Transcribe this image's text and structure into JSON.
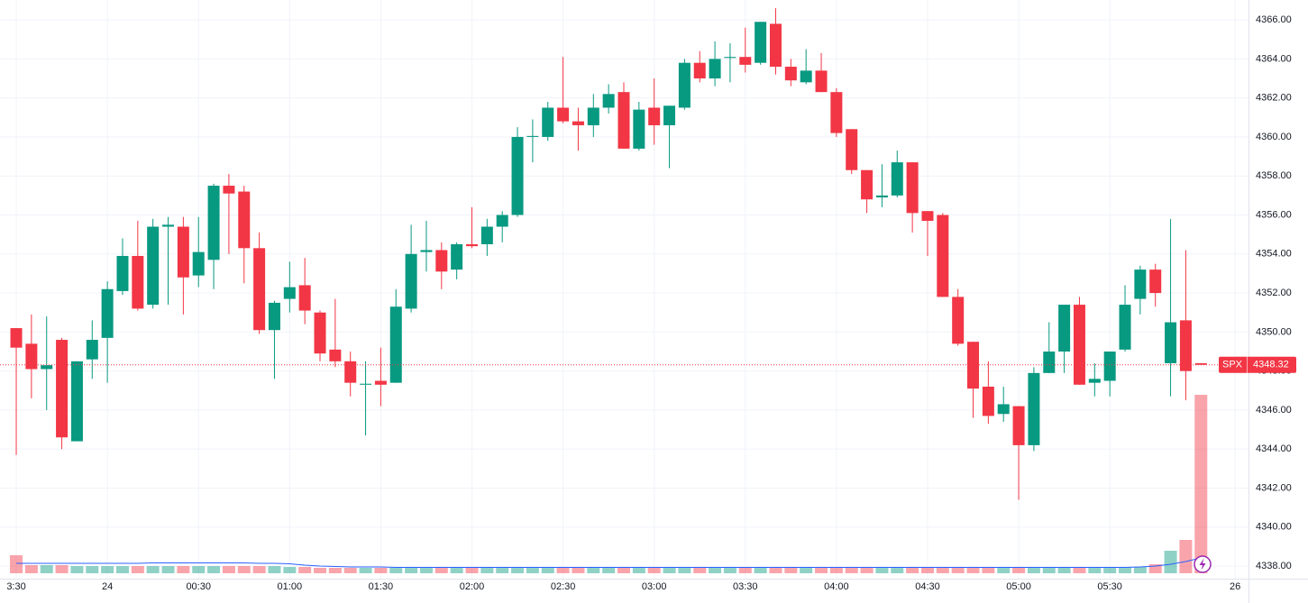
{
  "chart_data": {
    "type": "candlestick",
    "symbol": "SPX",
    "last_price": 4348.32,
    "up_color": "#089981",
    "down_color": "#f23645",
    "ma_color": "#2962ff",
    "grid": true,
    "xlim": [
      -1.07,
      81.13
    ],
    "xticks": [
      {
        "value": 0,
        "label": "3:30"
      },
      {
        "value": 6,
        "label": "24"
      },
      {
        "value": 12,
        "label": "00:30"
      },
      {
        "value": 18,
        "label": "01:00"
      },
      {
        "value": 24,
        "label": "01:30"
      },
      {
        "value": 30,
        "label": "02:00"
      },
      {
        "value": 36,
        "label": "02:30"
      },
      {
        "value": 42,
        "label": "03:00"
      },
      {
        "value": 48,
        "label": "03:30"
      },
      {
        "value": 54,
        "label": "04:00"
      },
      {
        "value": 60,
        "label": "04:30"
      },
      {
        "value": 66,
        "label": "05:00"
      },
      {
        "value": 72,
        "label": "05:30"
      },
      {
        "value": 80.25,
        "label": "26"
      }
    ],
    "ylim": [
      4337.45,
      4367.02
    ],
    "yticks": [
      {
        "value": 4338,
        "label": "4338.00"
      },
      {
        "value": 4340,
        "label": "4340.00"
      },
      {
        "value": 4342,
        "label": "4342.00"
      },
      {
        "value": 4344,
        "label": "4344.00"
      },
      {
        "value": 4346,
        "label": "4346.00"
      },
      {
        "value": 4348,
        "label": "4348.00"
      },
      {
        "value": 4350,
        "label": "4350.00"
      },
      {
        "value": 4352,
        "label": "4352.00"
      },
      {
        "value": 4354,
        "label": "4354.00"
      },
      {
        "value": 4356,
        "label": "4356.00"
      },
      {
        "value": 4358,
        "label": "4358.00"
      },
      {
        "value": 4360,
        "label": "4360.00"
      },
      {
        "value": 4362,
        "label": "4362.00"
      },
      {
        "value": 4364,
        "label": "4364.00"
      },
      {
        "value": 4366,
        "label": "4366.00"
      }
    ],
    "open": [
      4350.2,
      4349.4,
      4348.1,
      4349.6,
      4344.4,
      4348.6,
      4349.7,
      4352.1,
      4353.9,
      4351.4,
      4355.4,
      4355.4,
      4352.9,
      4353.7,
      4357.5,
      4357.2,
      4354.3,
      4350.1,
      4351.7,
      4352.4,
      4351.0,
      4349.1,
      4348.5,
      4347.3,
      4347.5,
      4347.4,
      4351.2,
      4354.1,
      4354.2,
      4353.2,
      4354.5,
      4354.5,
      4355.4,
      4356.0,
      4360.0,
      4360.0,
      4361.5,
      4360.8,
      4360.6,
      4361.5,
      4362.3,
      4359.4,
      4361.5,
      4360.6,
      4361.5,
      4363.8,
      4363.0,
      4364.05,
      4364.1,
      4363.8,
      4365.8,
      4363.6,
      4362.8,
      4363.4,
      4362.3,
      4360.4,
      4358.3,
      4356.9,
      4357.0,
      4358.7,
      4356.2,
      4356.0,
      4351.8,
      4349.5,
      4347.2,
      4345.8,
      4346.2,
      4344.2,
      4347.9,
      4349.0,
      4351.4,
      4347.4,
      4347.5,
      4349.1,
      4351.7,
      4353.2,
      4348.4,
      4350.6,
      4348.4
    ],
    "high": [
      4350.2,
      4350.9,
      4350.8,
      4349.7,
      4348.5,
      4350.6,
      4352.6,
      4354.8,
      4355.7,
      4355.8,
      4355.9,
      4355.9,
      4355.9,
      4357.6,
      4358.1,
      4357.5,
      4355.1,
      4351.6,
      4353.6,
      4353.8,
      4351.1,
      4351.7,
      4349.0,
      4348.5,
      4349.2,
      4352.2,
      4355.5,
      4355.7,
      4354.6,
      4354.6,
      4356.4,
      4355.8,
      4356.2,
      4360.5,
      4360.9,
      4361.8,
      4364.1,
      4361.5,
      4362.2,
      4362.7,
      4362.8,
      4361.8,
      4363.0,
      4361.6,
      4364.0,
      4364.4,
      4364.9,
      4364.8,
      4365.6,
      4365.9,
      4366.6,
      4364.0,
      4364.5,
      4364.3,
      4362.5,
      4360.4,
      4358.3,
      4358.6,
      4359.3,
      4358.7,
      4356.2,
      4356.1,
      4352.2,
      4349.5,
      4348.5,
      4347.2,
      4346.2,
      4348.2,
      4350.5,
      4351.4,
      4351.8,
      4348.4,
      4349.0,
      4352.4,
      4353.4,
      4353.5,
      4355.8,
      4354.2,
      4348.4
    ],
    "low": [
      4343.7,
      4346.6,
      4346.0,
      4344.0,
      4344.4,
      4347.6,
      4347.4,
      4351.9,
      4351.1,
      4351.2,
      4351.4,
      4350.9,
      4352.3,
      4352.2,
      4354.0,
      4352.5,
      4349.9,
      4347.6,
      4351.0,
      4350.4,
      4348.5,
      4348.2,
      4346.7,
      4344.7,
      4346.2,
      4347.4,
      4351.0,
      4353.1,
      4352.2,
      4352.7,
      4354.3,
      4353.9,
      4354.6,
      4355.9,
      4358.7,
      4359.8,
      4360.7,
      4359.3,
      4360.0,
      4361.2,
      4359.4,
      4359.3,
      4359.6,
      4358.4,
      4361.4,
      4362.8,
      4362.6,
      4362.8,
      4363.3,
      4363.7,
      4363.2,
      4362.6,
      4362.7,
      4362.3,
      4360.0,
      4358.1,
      4356.1,
      4356.4,
      4356.9,
      4355.1,
      4353.9,
      4351.8,
      4349.3,
      4345.6,
      4345.3,
      4345.4,
      4341.4,
      4343.9,
      4347.9,
      4347.9,
      4347.3,
      4346.7,
      4346.7,
      4349.0,
      4350.9,
      4351.3,
      4346.7,
      4346.5,
      4348.32
    ],
    "close": [
      4349.2,
      4348.1,
      4348.3,
      4344.6,
      4348.5,
      4349.6,
      4352.2,
      4353.9,
      4351.2,
      4355.4,
      4355.5,
      4352.8,
      4354.1,
      4357.5,
      4357.1,
      4354.3,
      4350.1,
      4351.5,
      4352.3,
      4351.1,
      4348.9,
      4348.5,
      4347.4,
      4347.35,
      4347.3,
      4351.3,
      4354.0,
      4354.2,
      4353.1,
      4354.5,
      4354.4,
      4355.4,
      4356.0,
      4360.0,
      4360.05,
      4361.5,
      4360.8,
      4360.6,
      4361.5,
      4362.2,
      4359.4,
      4361.4,
      4360.6,
      4361.6,
      4363.8,
      4363.0,
      4364.0,
      4364.1,
      4363.7,
      4365.9,
      4363.6,
      4362.9,
      4363.4,
      4362.3,
      4360.2,
      4358.3,
      4356.8,
      4357.0,
      4358.7,
      4356.1,
      4355.7,
      4351.8,
      4349.4,
      4347.1,
      4345.7,
      4346.3,
      4344.2,
      4347.9,
      4349.0,
      4351.4,
      4347.3,
      4347.6,
      4349.0,
      4351.4,
      4353.2,
      4352.0,
      4350.5,
      4348.0,
      4348.32
    ],
    "volume": [
      20,
      9,
      9,
      9,
      8,
      8,
      8,
      8,
      8,
      8,
      8,
      8,
      8,
      8,
      8,
      8,
      8,
      8,
      7,
      7,
      6,
      6,
      6,
      6,
      6,
      6,
      6,
      6,
      6,
      6,
      6,
      6,
      6,
      6,
      6,
      6,
      6,
      6,
      6,
      6,
      6,
      6,
      6,
      6,
      6,
      6,
      6,
      6,
      6,
      6,
      6,
      6,
      6,
      6,
      6,
      6,
      6,
      6,
      6,
      6,
      6,
      6,
      6,
      6,
      6,
      7,
      6,
      6,
      6,
      6,
      6,
      6,
      7,
      7,
      7,
      10,
      25,
      37,
      198
    ],
    "volume_ma": [
      11,
      11,
      11,
      11,
      11,
      11,
      11,
      11,
      11,
      11.5,
      11.5,
      11.5,
      11.5,
      11.5,
      11.5,
      11.5,
      11,
      11,
      10.5,
      9,
      8,
      7.5,
      7,
      7,
      7,
      6.5,
      6.5,
      6.5,
      6.5,
      6.5,
      6.5,
      6.5,
      6.5,
      6.5,
      6.5,
      6.5,
      6.5,
      6.5,
      6.5,
      6.5,
      6.5,
      6.5,
      6.5,
      6.5,
      6.5,
      6.5,
      6.5,
      6.5,
      6.5,
      6.5,
      6.5,
      6.5,
      6.5,
      6.5,
      6.5,
      6.5,
      6.5,
      6.5,
      6.5,
      6.5,
      6.5,
      6.5,
      6.5,
      6.5,
      6.5,
      6.5,
      6.5,
      6.5,
      6.5,
      6.5,
      6.5,
      6.5,
      6.5,
      6.5,
      7,
      8,
      10,
      13,
      17
    ]
  }
}
